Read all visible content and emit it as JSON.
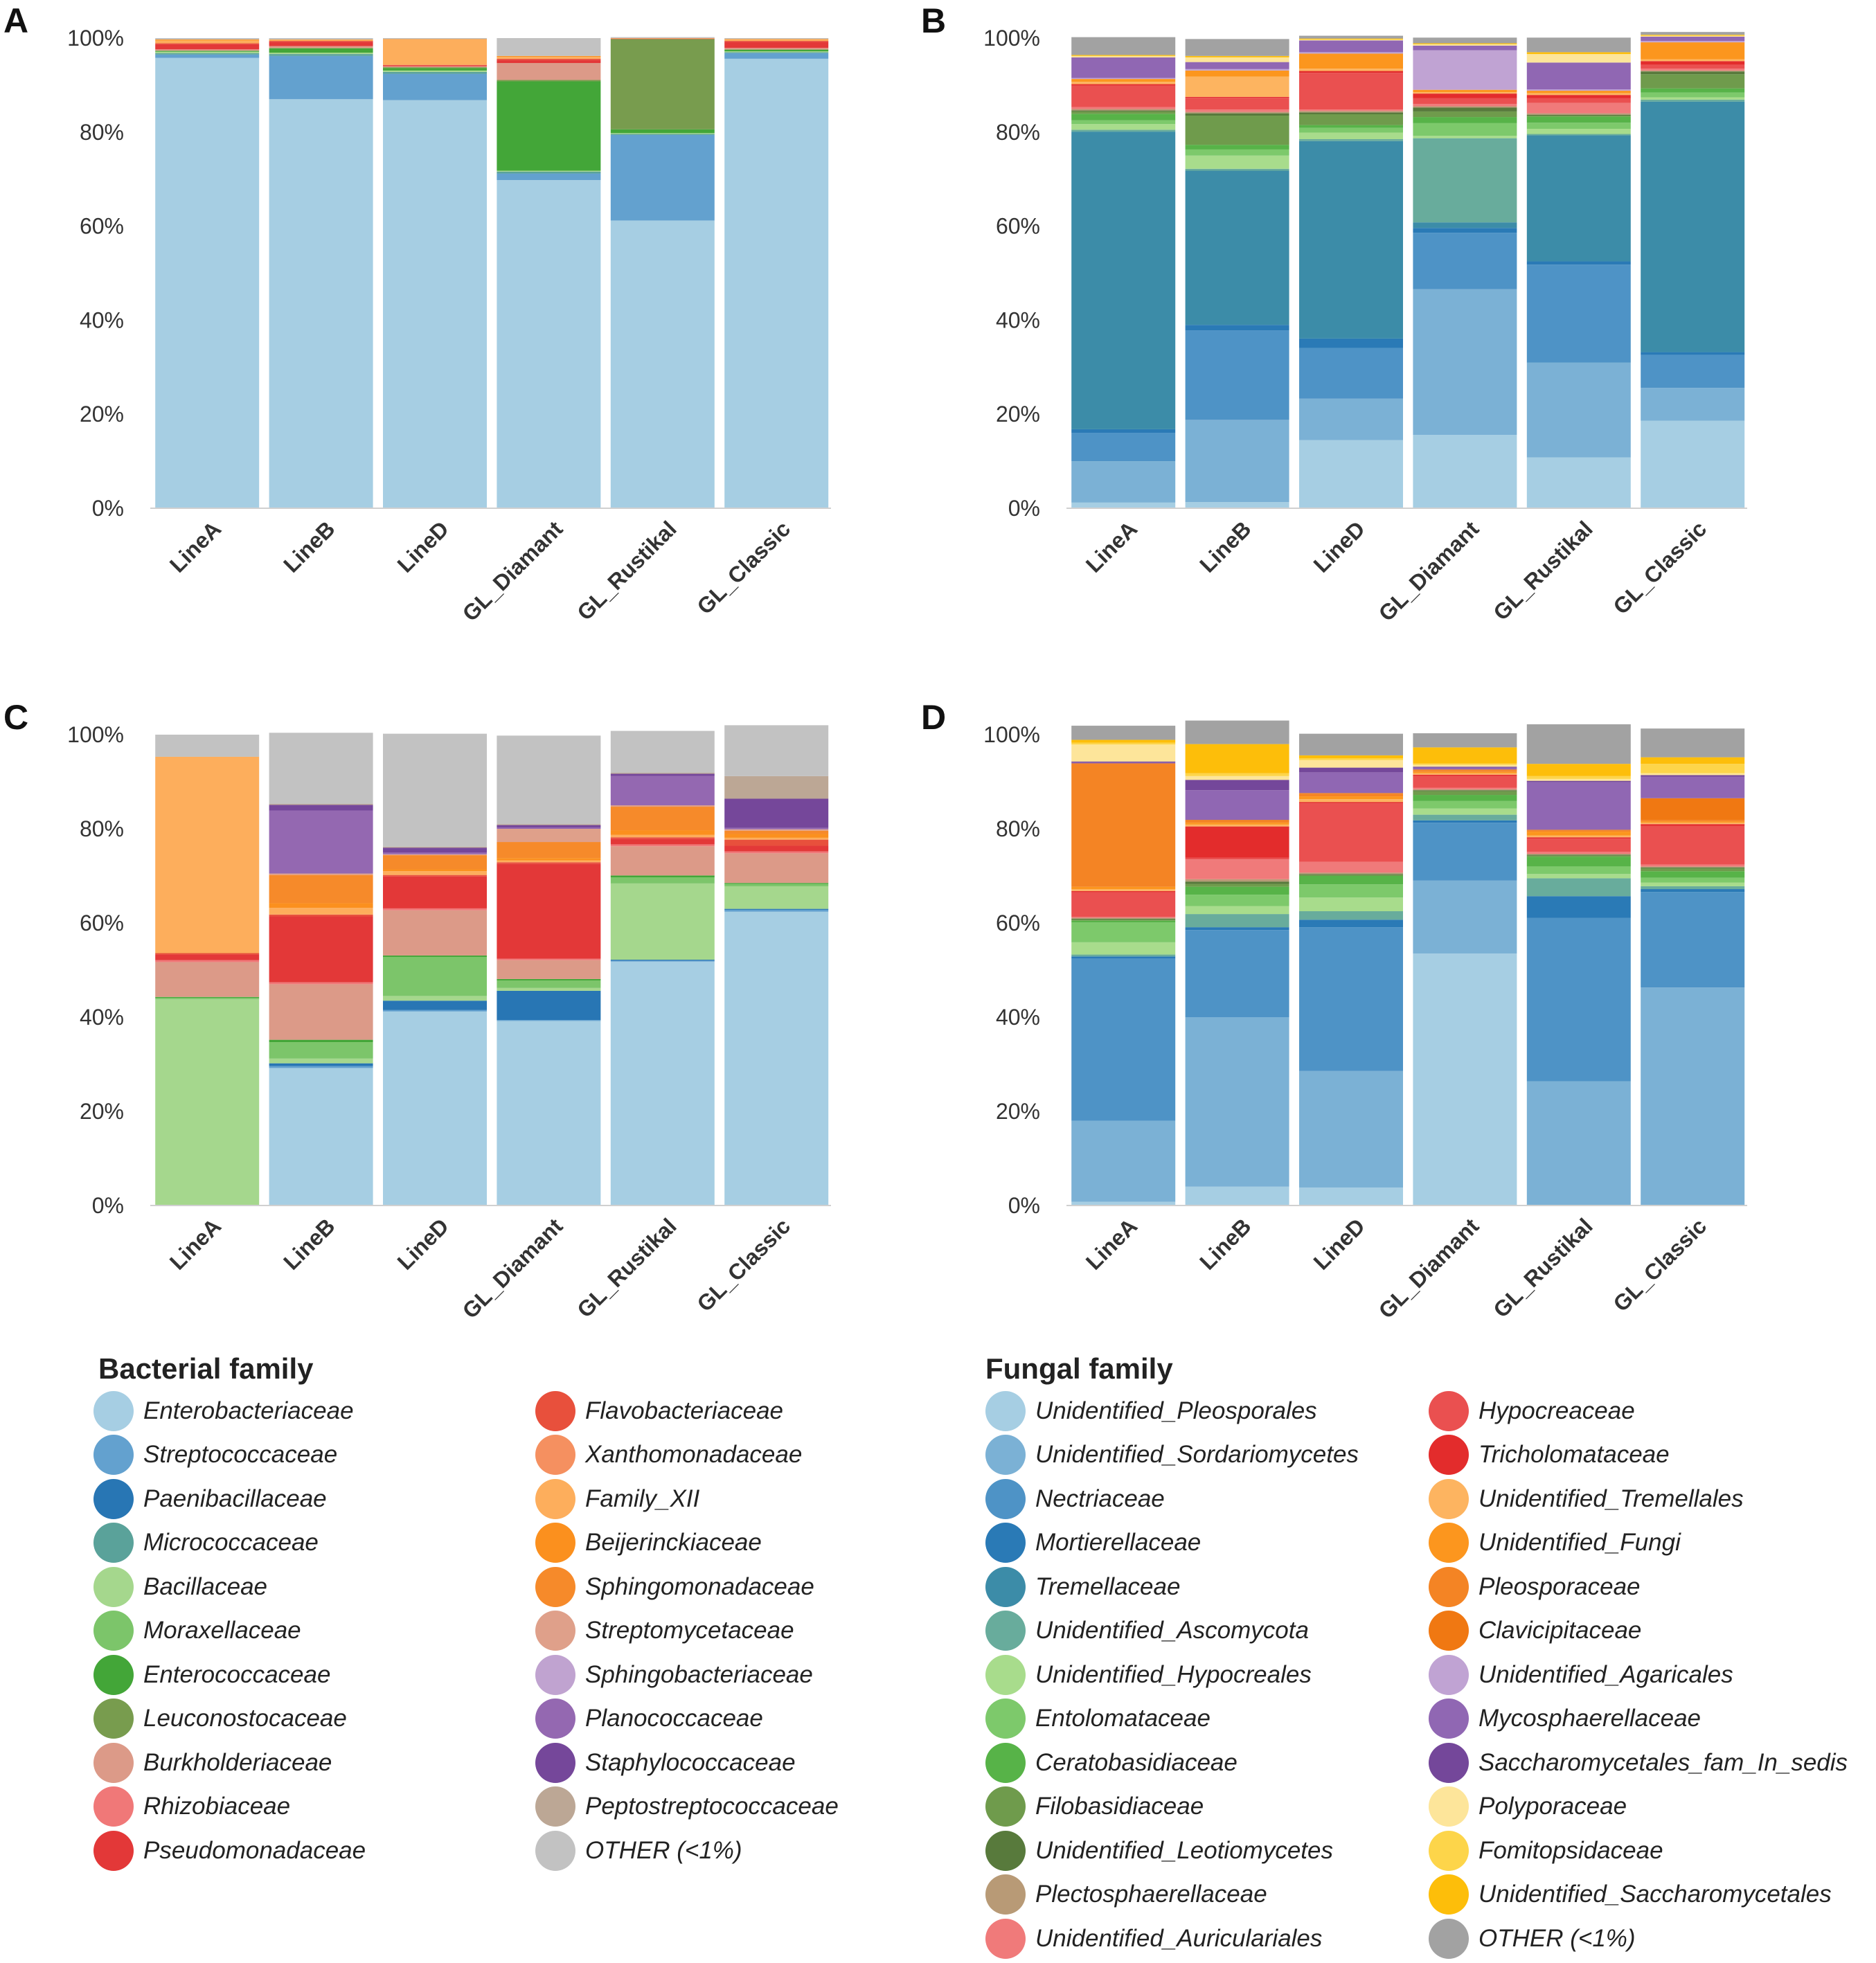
{
  "categories": [
    "LineA",
    "LineB",
    "LineD",
    "GL_Diamant",
    "GL_Rustikal",
    "GL_Classic"
  ],
  "y_ticks": [
    "0%",
    "20%",
    "40%",
    "60%",
    "80%",
    "100%"
  ],
  "colors": {
    "Enterobacteriaceae": "#a6cee3",
    "Streptococcaceae": "#63a1cf",
    "Paenibacillaceae": "#2876b4",
    "Micrococcaceae": "#5aa29a",
    "Bacillaceae": "#a5d78d",
    "Moraxellaceae": "#7cc56a",
    "Enterococcaceae": "#43a638",
    "Leuconostocaceae": "#789c4e",
    "Burkholderiaceae": "#dc9a88",
    "Rhizobiaceae": "#f07878",
    "Pseudomonadaceae": "#e33838",
    "Flavobacteriaceae": "#e8503c",
    "Xanthomonadaceae": "#f59060",
    "Family_XII": "#fdae5c",
    "Beijerinckiaceae": "#fb901e",
    "Sphingomonadaceae": "#f68a2a",
    "Streptomycetaceae": "#dfa08a",
    "Sphingobacteriaceae": "#c0a3d0",
    "Planococcaceae": "#9468b1",
    "Staphylococcaceae": "#75479a",
    "Peptostreptococcaceae": "#bca795",
    "B_OTHER (<1%)": "#c2c2c2",
    "Unidentified_Pleosporales": "#a6cee3",
    "Unidentified_Sordariomycetes": "#7bb1d5",
    "Nectriaceae": "#4e93c6",
    "Mortierellaceae": "#2a7ab6",
    "Tremellaceae": "#3c8ca8",
    "Unidentified_Ascomycota": "#68ac9c",
    "Unidentified_Hypocreales": "#a8dc8c",
    "Entolomataceae": "#7dc96b",
    "Ceratobasidiaceae": "#57b348",
    "Filobasidiaceae": "#6f9b4c",
    "Unidentified_Leotiomycetes": "#587a3c",
    "Plectosphaerellaceae": "#b89a76",
    "Unidentified_Auriculariales": "#f07a7a",
    "Hypocreaceae": "#ea5050",
    "Tricholomataceae": "#e32c2c",
    "Unidentified_Tremellales": "#fdb460",
    "Unidentified_Fungi": "#fc961e",
    "Pleosporaceae": "#f48424",
    "Clavicipitaceae": "#f07812",
    "Unidentified_Agaricales": "#c0a3d3",
    "Mycosphaerellaceae": "#9067b3",
    "Saccharomycetales_fam_In_sedis": "#74479a",
    "Polyporaceae": "#fde59a",
    "Fomitopsidaceae": "#fdd54a",
    "Unidentified_Saccharomycetales": "#fdbe0a",
    "F_OTHER (<1%)": "#a2a2a2"
  },
  "chart_data": [
    {
      "panel": "A",
      "type": "stacked-bar",
      "ylim": [
        0,
        100
      ],
      "series": [
        {
          "name": "Enterobacteriaceae",
          "values": [
            95.8,
            87.0,
            86.8,
            69.8,
            61.2,
            95.6
          ]
        },
        {
          "name": "Streptococcaceae",
          "values": [
            0.7,
            9.2,
            5.6,
            1.4,
            18.2,
            1.2
          ]
        },
        {
          "name": "Micrococcaceae",
          "values": [
            0.3,
            0.4,
            0.4,
            0.4,
            0.2,
            0.2
          ]
        },
        {
          "name": "Bacillaceae",
          "values": [
            0.3,
            0.3,
            0.3,
            0.2,
            0.2,
            0.2
          ]
        },
        {
          "name": "Enterococcaceae",
          "values": [
            0.2,
            0.9,
            0.5,
            19.0,
            0.8,
            0.3
          ]
        },
        {
          "name": "Leuconostocaceae",
          "values": [
            0.0,
            0.1,
            0.2,
            0.3,
            19.2,
            0.1
          ]
        },
        {
          "name": "Burkholderiaceae",
          "values": [
            0.3,
            0.4,
            0.2,
            3.6,
            0.0,
            0.3
          ]
        },
        {
          "name": "Pseudomonadaceae",
          "values": [
            1.1,
            0.9,
            0.2,
            0.6,
            0.1,
            1.3
          ]
        },
        {
          "name": "Flavobacteriaceae",
          "values": [
            0.2,
            0.2,
            0.1,
            0.3,
            0.0,
            0.2
          ]
        },
        {
          "name": "Family_XII",
          "values": [
            0.6,
            0.2,
            5.4,
            0.4,
            0.1,
            0.3
          ]
        },
        {
          "name": "Beijerinckiaceae",
          "values": [
            0.2,
            0.1,
            0.1,
            0.2,
            0.0,
            0.1
          ]
        },
        {
          "name": "B_OTHER (<1%)",
          "values": [
            0.3,
            0.3,
            0.2,
            3.8,
            0.2,
            0.2
          ]
        }
      ]
    },
    {
      "panel": "B",
      "type": "stacked-bar",
      "ylim": [
        0,
        100
      ],
      "series": [
        {
          "name": "Unidentified_Pleosporales",
          "values": [
            1.2,
            1.3,
            14.5,
            15.6,
            10.8,
            18.6
          ]
        },
        {
          "name": "Unidentified_Sordariomycetes",
          "values": [
            8.8,
            17.5,
            8.8,
            31.0,
            20.2,
            7.0
          ]
        },
        {
          "name": "Nectriaceae",
          "values": [
            6.0,
            19.0,
            10.8,
            12.0,
            20.8,
            7.0
          ]
        },
        {
          "name": "Mortierellaceae",
          "values": [
            0.8,
            1.2,
            2.0,
            1.0,
            0.7,
            0.6
          ]
        },
        {
          "name": "Tremellaceae",
          "values": [
            63.3,
            32.8,
            42.0,
            1.2,
            26.8,
            53.3
          ]
        },
        {
          "name": "Unidentified_Ascomycota",
          "values": [
            0.4,
            0.4,
            0.4,
            17.9,
            0.3,
            0.4
          ]
        },
        {
          "name": "Unidentified_Hypocreales",
          "values": [
            1.2,
            2.8,
            1.4,
            0.5,
            1.1,
            0.5
          ]
        },
        {
          "name": "Entolomataceae",
          "values": [
            0.8,
            1.3,
            1.0,
            2.7,
            1.3,
            1.0
          ]
        },
        {
          "name": "Ceratobasidiaceae",
          "values": [
            1.4,
            1.0,
            0.6,
            1.3,
            1.3,
            0.9
          ]
        },
        {
          "name": "Filobasidiaceae",
          "values": [
            0.5,
            6.2,
            2.3,
            1.2,
            0.2,
            3.0
          ]
        },
        {
          "name": "Unidentified_Leotiomycetes",
          "values": [
            0.2,
            0.5,
            0.4,
            0.8,
            0.2,
            0.6
          ]
        },
        {
          "name": "Plectosphaerellaceae",
          "values": [
            0.3,
            0.3,
            0.3,
            0.3,
            0.3,
            0.2
          ]
        },
        {
          "name": "Unidentified_Auriculariales",
          "values": [
            0.4,
            0.5,
            0.3,
            0.5,
            2.2,
            0.4
          ]
        },
        {
          "name": "Hypocreaceae",
          "values": [
            4.6,
            2.5,
            7.8,
            1.2,
            1.0,
            0.8
          ]
        },
        {
          "name": "Tricholomataceae",
          "values": [
            0.3,
            0.2,
            0.4,
            1.0,
            0.7,
            0.8
          ]
        },
        {
          "name": "Unidentified_Tremellales",
          "values": [
            0.5,
            4.3,
            0.5,
            0.3,
            0.4,
            0.4
          ]
        },
        {
          "name": "Unidentified_Fungi",
          "values": [
            0.6,
            1.3,
            3.2,
            0.5,
            0.5,
            3.6
          ]
        },
        {
          "name": "Unidentified_Agaricales",
          "values": [
            0.2,
            0.3,
            0.3,
            8.4,
            0.3,
            0.3
          ]
        },
        {
          "name": "Mycosphaerellaceae",
          "values": [
            4.4,
            1.5,
            2.5,
            1.0,
            5.7,
            0.9
          ]
        },
        {
          "name": "Polyporaceae",
          "values": [
            0.3,
            1.0,
            0.2,
            0.3,
            1.8,
            0.2
          ]
        },
        {
          "name": "Unidentified_Saccharomycetales",
          "values": [
            0.2,
            0.3,
            0.2,
            0.2,
            0.4,
            0.2
          ]
        },
        {
          "name": "F_OTHER (<1%)",
          "values": [
            3.8,
            3.6,
            0.6,
            1.2,
            3.1,
            0.6
          ]
        }
      ]
    },
    {
      "panel": "C",
      "type": "stacked-bar",
      "ylim": [
        0,
        100
      ],
      "series": [
        {
          "name": "Enterobacteriaceae",
          "values": [
            0.0,
            29.2,
            41.2,
            39.2,
            51.8,
            62.4
          ]
        },
        {
          "name": "Streptococcaceae",
          "values": [
            0.0,
            0.4,
            0.3,
            0.2,
            0.2,
            0.4
          ]
        },
        {
          "name": "Paenibacillaceae",
          "values": [
            0.0,
            0.6,
            2.0,
            6.2,
            0.2,
            0.2
          ]
        },
        {
          "name": "Bacillaceae",
          "values": [
            43.8,
            1.0,
            1.0,
            0.6,
            16.2,
            4.8
          ]
        },
        {
          "name": "Moraxellaceae",
          "values": [
            0.3,
            3.5,
            8.3,
            1.6,
            1.3,
            0.5
          ]
        },
        {
          "name": "Enterococcaceae",
          "values": [
            0.2,
            0.5,
            0.3,
            0.3,
            0.4,
            0.2
          ]
        },
        {
          "name": "Burkholderiaceae",
          "values": [
            7.4,
            11.8,
            9.6,
            4.0,
            6.2,
            6.3
          ]
        },
        {
          "name": "Rhizobiaceae",
          "values": [
            0.4,
            0.4,
            0.4,
            0.3,
            0.4,
            0.4
          ]
        },
        {
          "name": "Pseudomonadaceae",
          "values": [
            1.2,
            14.0,
            6.8,
            20.2,
            1.2,
            1.2
          ]
        },
        {
          "name": "Flavobacteriaceae",
          "values": [
            0.3,
            0.4,
            0.3,
            0.3,
            0.3,
            1.3
          ]
        },
        {
          "name": "Family_XII",
          "values": [
            41.7,
            1.4,
            0.8,
            0.4,
            0.5,
            0.4
          ]
        },
        {
          "name": "Beijerinckiaceae",
          "values": [
            0.0,
            1.0,
            0.4,
            0.5,
            1.0,
            0.8
          ]
        },
        {
          "name": "Sphingomonadaceae",
          "values": [
            0.0,
            6.0,
            3.0,
            3.4,
            5.0,
            0.7
          ]
        },
        {
          "name": "Streptomycetaceae",
          "values": [
            0.0,
            0.3,
            0.2,
            2.8,
            0.3,
            0.3
          ]
        },
        {
          "name": "Planococcaceae",
          "values": [
            0.0,
            13.4,
            0.4,
            0.3,
            6.2,
            0.3
          ]
        },
        {
          "name": "Staphylococcaceae",
          "values": [
            0.0,
            1.2,
            1.0,
            0.5,
            0.5,
            6.2
          ]
        },
        {
          "name": "Peptostreptococcaceae",
          "values": [
            0.0,
            0.2,
            0.2,
            0.2,
            0.2,
            4.8
          ]
        },
        {
          "name": "B_OTHER (<1%)",
          "values": [
            4.7,
            15.1,
            24.0,
            18.8,
            8.9,
            10.8
          ]
        }
      ]
    },
    {
      "panel": "D",
      "type": "stacked-bar",
      "ylim": [
        0,
        100
      ],
      "series": [
        {
          "name": "Unidentified_Pleosporales",
          "values": [
            0.8,
            4.0,
            3.8,
            53.5,
            0.0,
            0.0
          ]
        },
        {
          "name": "Unidentified_Sordariomycetes",
          "values": [
            17.2,
            36.0,
            24.8,
            15.5,
            26.4,
            46.3
          ]
        },
        {
          "name": "Nectriaceae",
          "values": [
            34.5,
            18.5,
            30.5,
            12.3,
            34.7,
            20.3
          ]
        },
        {
          "name": "Mortierellaceae",
          "values": [
            0.4,
            0.6,
            1.6,
            0.5,
            4.6,
            0.6
          ]
        },
        {
          "name": "Unidentified_Ascomycota",
          "values": [
            0.4,
            2.8,
            1.8,
            1.2,
            3.8,
            0.6
          ]
        },
        {
          "name": "Unidentified_Hypocreales",
          "values": [
            2.6,
            1.7,
            2.9,
            1.3,
            0.9,
            0.8
          ]
        },
        {
          "name": "Entolomataceae",
          "values": [
            4.2,
            2.4,
            2.8,
            1.6,
            1.6,
            1.0
          ]
        },
        {
          "name": "Ceratobasidiaceae",
          "values": [
            0.4,
            1.7,
            1.8,
            1.3,
            2.1,
            1.4
          ]
        },
        {
          "name": "Filobasidiaceae",
          "values": [
            0.2,
            0.6,
            0.2,
            0.8,
            0.2,
            0.6
          ]
        },
        {
          "name": "Unidentified_Leotiomycetes",
          "values": [
            0.2,
            0.5,
            0.2,
            0.2,
            0.2,
            0.2
          ]
        },
        {
          "name": "Plectosphaerellaceae",
          "values": [
            0.2,
            0.5,
            0.3,
            0.2,
            0.2,
            0.2
          ]
        },
        {
          "name": "Unidentified_Auriculariales",
          "values": [
            0.2,
            4.2,
            2.3,
            0.3,
            0.4,
            0.4
          ]
        },
        {
          "name": "Hypocreaceae",
          "values": [
            5.2,
            0.4,
            12.4,
            2.5,
            2.8,
            8.2
          ]
        },
        {
          "name": "Tricholomataceae",
          "values": [
            0.3,
            6.6,
            0.3,
            0.3,
            0.3,
            0.4
          ]
        },
        {
          "name": "Unidentified_Tremellales",
          "values": [
            0.4,
            0.4,
            0.6,
            0.3,
            0.4,
            0.3
          ]
        },
        {
          "name": "Unidentified_Fungi",
          "values": [
            0.5,
            0.4,
            0.6,
            0.3,
            0.8,
            0.3
          ]
        },
        {
          "name": "Pleosporaceae",
          "values": [
            26.0,
            0.4,
            0.5,
            0.3,
            0.2,
            0.3
          ]
        },
        {
          "name": "Clavicipitaceae",
          "values": [
            0.2,
            0.2,
            0.2,
            0.2,
            0.2,
            4.6
          ]
        },
        {
          "name": "Mycosphaerellaceae",
          "values": [
            0.2,
            6.3,
            4.4,
            0.4,
            10.1,
            4.6
          ]
        },
        {
          "name": "Saccharomycetales_fam_In_sedis",
          "values": [
            0.2,
            2.2,
            1.0,
            0.2,
            0.3,
            0.3
          ]
        },
        {
          "name": "Polyporaceae",
          "values": [
            3.6,
            0.8,
            1.6,
            0.4,
            0.4,
            0.4
          ]
        },
        {
          "name": "Fomitopsidaceae",
          "values": [
            0.4,
            0.6,
            0.4,
            0.3,
            0.6,
            2.0
          ]
        },
        {
          "name": "Unidentified_Saccharomycetales",
          "values": [
            0.6,
            6.2,
            0.6,
            3.4,
            2.6,
            1.4
          ]
        },
        {
          "name": "F_OTHER (<1%)",
          "values": [
            3.0,
            5.0,
            4.6,
            3.0,
            8.4,
            6.1
          ]
        }
      ]
    }
  ],
  "legend_bacterial": {
    "title": "Bacterial family",
    "col1": [
      "Enterobacteriaceae",
      "Streptococcaceae",
      "Paenibacillaceae",
      "Micrococcaceae",
      "Bacillaceae",
      "Moraxellaceae",
      "Enterococcaceae",
      "Leuconostocaceae",
      "Burkholderiaceae",
      "Rhizobiaceae",
      "Pseudomonadaceae"
    ],
    "col2": [
      "Flavobacteriaceae",
      "Xanthomonadaceae",
      "Family_XII",
      "Beijerinckiaceae",
      "Sphingomonadaceae",
      "Streptomycetaceae",
      "Sphingobacteriaceae",
      "Planococcaceae",
      "Staphylococcaceae",
      "Peptostreptococcaceae",
      "OTHER (<1%)"
    ]
  },
  "legend_fungal": {
    "title": "Fungal family",
    "col1": [
      "Unidentified_Pleosporales",
      "Unidentified_Sordariomycetes",
      "Nectriaceae",
      "Mortierellaceae",
      "Tremellaceae",
      "Unidentified_Ascomycota",
      "Unidentified_Hypocreales",
      "Entolomataceae",
      "Ceratobasidiaceae",
      "Filobasidiaceae",
      "Unidentified_Leotiomycetes",
      "Plectosphaerellaceae",
      "Unidentified_Auriculariales"
    ],
    "col2": [
      "Hypocreaceae",
      "Tricholomataceae",
      "Unidentified_Tremellales",
      "Unidentified_Fungi",
      "Pleosporaceae",
      "Clavicipitaceae",
      "Unidentified_Agaricales",
      "Mycosphaerellaceae",
      "Saccharomycetales_fam_In_sedis",
      "Polyporaceae",
      "Fomitopsidaceae",
      "Unidentified_Saccharomycetales",
      "OTHER (<1%)"
    ]
  }
}
